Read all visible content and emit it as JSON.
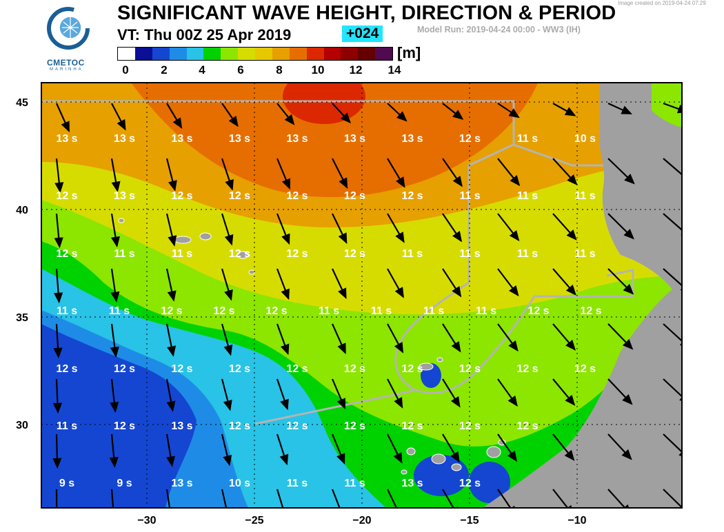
{
  "header": {
    "title": "SIGNIFICANT WAVE HEIGHT, DIRECTION & PERIOD",
    "valid_time": "VT:  Thu 00Z 25 Apr 2019",
    "lead": "+024",
    "model_run": "Model Run: 2019-04-24 00:00  -  WW3 (IH)",
    "created": "Image created on  2019-04-24 07:29"
  },
  "logo": {
    "name": "CMETOC",
    "sub": "MARINHA",
    "icon": "cmetoc-logo-icon"
  },
  "colorbar": {
    "unit": "[m]",
    "ticks": [
      "0",
      "2",
      "4",
      "6",
      "8",
      "10",
      "12",
      "14"
    ],
    "colors": [
      "#ffffff",
      "#0a0f96",
      "#1446d2",
      "#1e8ce6",
      "#28c3e6",
      "#00d200",
      "#8ce600",
      "#d7dc00",
      "#e6c800",
      "#e6a000",
      "#e66e00",
      "#dc2800",
      "#b40000",
      "#8c0000",
      "#640000",
      "#500a50"
    ]
  },
  "map": {
    "lon_ticks": [
      "−30",
      "−25",
      "−20",
      "−15",
      "−10"
    ],
    "lat_ticks": [
      "45",
      "40",
      "35",
      "30"
    ],
    "period_labels": [
      [
        "13 s",
        "13 s",
        "13 s",
        "13 s",
        "13 s",
        "13 s",
        "13 s",
        "12 s",
        "11 s",
        "10 s"
      ],
      [
        "12 s",
        "13 s",
        "12 s",
        "12 s",
        "12 s",
        "12 s",
        "12 s",
        "11 s",
        "11 s",
        "11 s"
      ],
      [
        "12 s",
        "11 s",
        "11 s",
        "12 s",
        "12 s",
        "12 s",
        "11 s",
        "11 s",
        "11 s",
        "11 s"
      ],
      [
        "11 s",
        "11 s",
        "12 s",
        "12 s",
        "12 s",
        "11 s",
        "11 s",
        "11 s",
        "11 s",
        "12 s",
        "12 s"
      ],
      [
        "12 s",
        "12 s",
        "12 s",
        "12 s",
        "12 s",
        "12 s",
        "12 s",
        "12 s",
        "12 s",
        "12 s"
      ],
      [
        "11 s",
        "12 s",
        "13 s",
        "12 s",
        "12 s",
        "12 s",
        "12 s",
        "12 s",
        "12 s"
      ],
      [
        "9 s",
        "9 s",
        "13 s",
        "10 s",
        "11 s",
        "11 s",
        "13 s",
        "12 s"
      ]
    ]
  }
}
